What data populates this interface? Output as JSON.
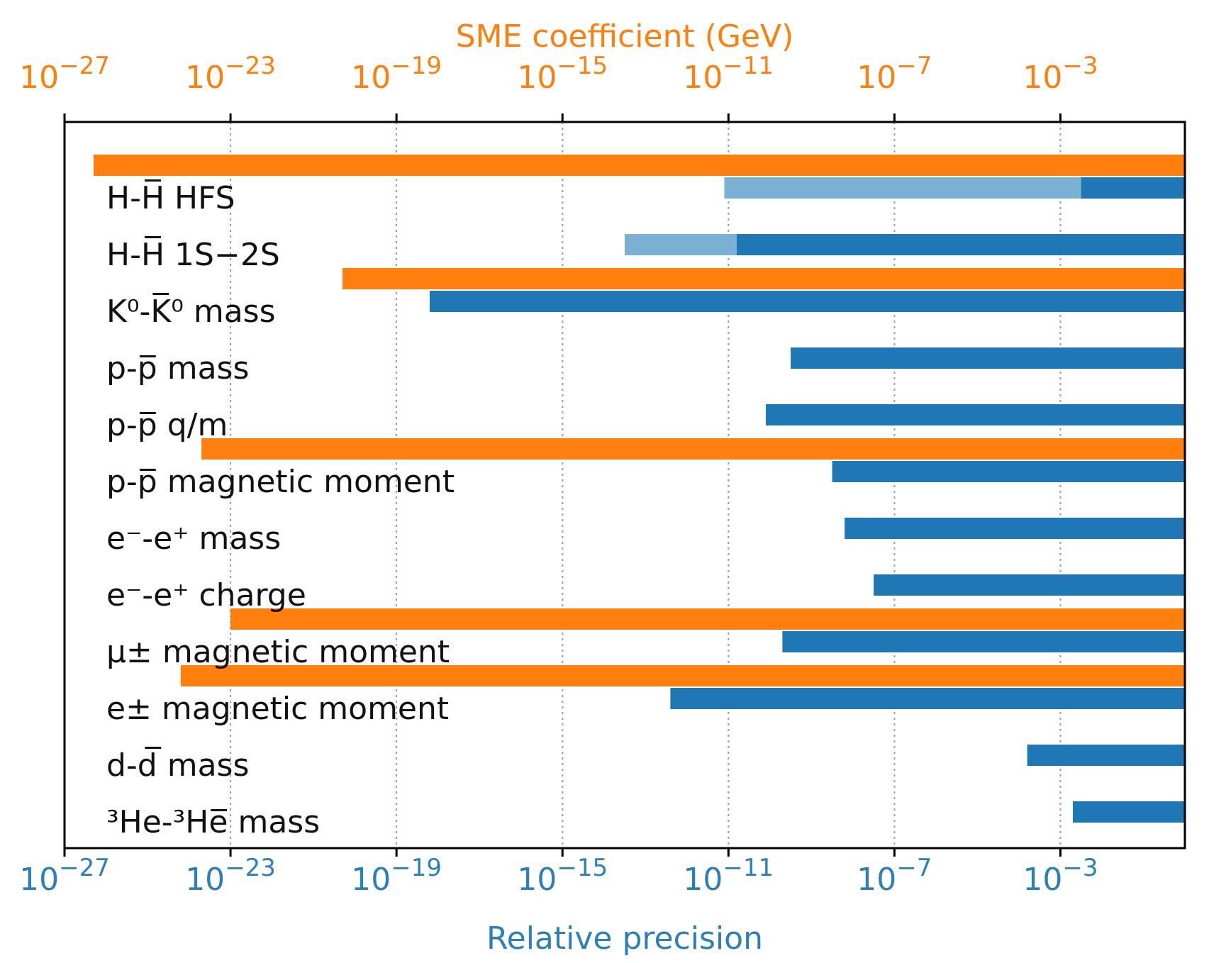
{
  "chart_data": {
    "type": "bar",
    "orientation": "horizontal",
    "title": "",
    "top_axis": {
      "label": "SME coefficient (GeV)",
      "scale": "log10",
      "range_exp": [
        -27,
        0
      ],
      "tick_exponents": [
        -27,
        -23,
        -19,
        -15,
        -11,
        -7,
        -3
      ],
      "color": "#ff7f0e"
    },
    "bottom_axis": {
      "label": "Relative precision",
      "scale": "log10",
      "range_exp": [
        -27,
        0
      ],
      "tick_exponents": [
        -27,
        -23,
        -19,
        -15,
        -11,
        -7,
        -3
      ],
      "color": "#2c7fb8"
    },
    "grid": "vertical dotted at ticks",
    "colors": {
      "sme": "#ff7f0e",
      "precision": "#1f77b4",
      "precision_projected": "#7bafd4"
    },
    "rows": [
      {
        "label": "H-H̅ HFS",
        "sme_exp": -26.3,
        "precision_exp": -2.5,
        "projected_exp": -11.1
      },
      {
        "label": "H-H̅ 1S−2S",
        "precision_exp": -10.8,
        "projected_exp": -13.5
      },
      {
        "label": "K⁰-K̅⁰ mass",
        "sme_exp": -20.3,
        "precision_exp": -18.2
      },
      {
        "label": "p-p̅ mass",
        "precision_exp": -9.5
      },
      {
        "label": "p-p̅ q/m",
        "precision_exp": -10.1
      },
      {
        "label": "p-p̅ magnetic moment",
        "sme_exp": -23.7,
        "precision_exp": -8.5
      },
      {
        "label": "e⁻-e⁺ mass",
        "precision_exp": -8.2
      },
      {
        "label": "e⁻-e⁺ charge",
        "precision_exp": -7.5
      },
      {
        "label": "μ± magnetic moment",
        "sme_exp": -23.0,
        "precision_exp": -9.7
      },
      {
        "label": "e± magnetic moment",
        "sme_exp": -24.2,
        "precision_exp": -12.4
      },
      {
        "label": "d-d̅ mass",
        "precision_exp": -3.8
      },
      {
        "label": "³He-³He̅ mass",
        "precision_exp": -2.7
      }
    ]
  }
}
